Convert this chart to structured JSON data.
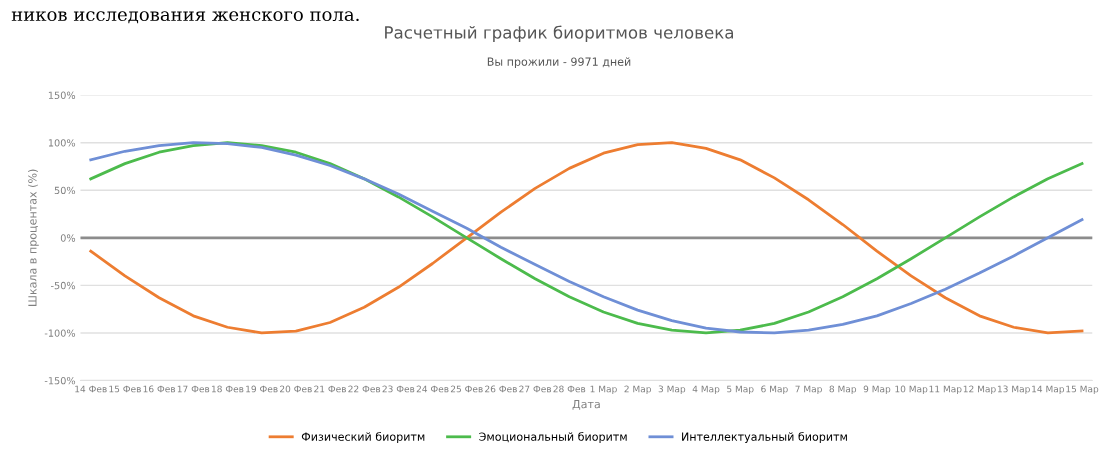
{
  "chart_data": {
    "type": "line",
    "title": "Расчетный график биоритмов человека",
    "subtitle": "Вы прожили - 9971 дней",
    "xlabel": "Дата",
    "ylabel": "Шкала в процентах (%)",
    "annotations": [
      "ников исследования женского пола."
    ],
    "categories": [
      "14 Фев",
      "15 Фев",
      "16 Фев",
      "17 Фев",
      "18 Фев",
      "19 Фев",
      "20 Фев",
      "21 Фев",
      "22 Фев",
      "23 Фев",
      "24 Фев",
      "25 Фев",
      "26 Фев",
      "27 Фев",
      "28 Фев",
      "1 Мар",
      "2 Мар",
      "3 Мар",
      "4 Мар",
      "5 Мар",
      "6 Мар",
      "7 Мар",
      "8 Мар",
      "9 Мар",
      "10 Мар",
      "11 Мар",
      "12 Мар",
      "13 Мар",
      "14 Мар",
      "15 Мар"
    ],
    "series": [
      {
        "name": "Физический биоритм",
        "color": "#ed7d31",
        "values": [
          -14,
          -40,
          -63,
          -82,
          -94,
          -100,
          -98,
          -89,
          -73,
          -52,
          -27,
          0,
          27,
          52,
          73,
          89,
          98,
          100,
          94,
          82,
          63,
          40,
          14,
          -14,
          -40,
          -63,
          -82,
          -94,
          -100,
          -98
        ]
      },
      {
        "name": "Эмоциональный биоритм",
        "color": "#4cbb4c",
        "values": [
          62,
          78,
          90,
          97,
          100,
          97,
          90,
          78,
          62,
          43,
          22,
          0,
          -22,
          -43,
          -62,
          -78,
          -90,
          -97,
          -100,
          -97,
          -90,
          -78,
          -62,
          -43,
          -22,
          0,
          22,
          43,
          62,
          78
        ]
      },
      {
        "name": "Интеллектуальный биоритм",
        "color": "#6f8fd6",
        "values": [
          82,
          91,
          97,
          100,
          99,
          95,
          87,
          76,
          62,
          46,
          28,
          10,
          -10,
          -28,
          -46,
          -62,
          -76,
          -87,
          -95,
          -99,
          -100,
          -97,
          -91,
          -82,
          -69,
          -54,
          -37,
          -19,
          0,
          19
        ]
      }
    ],
    "ylim": [
      -150,
      150
    ],
    "yticks": [
      {
        "value": -150,
        "label": "-150%"
      },
      {
        "value": -100,
        "label": "-100%"
      },
      {
        "value": -50,
        "label": "-50%"
      },
      {
        "value": 0,
        "label": "0%"
      },
      {
        "value": 50,
        "label": "50%"
      },
      {
        "value": 100,
        "label": "100%"
      },
      {
        "value": 150,
        "label": "150%"
      }
    ],
    "ref_lines": [
      {
        "axis": "y",
        "value": 0,
        "color": "#8c8c8c"
      }
    ],
    "grid": "y",
    "legend": "bottom",
    "marker": "none",
    "line_style": "solid"
  }
}
